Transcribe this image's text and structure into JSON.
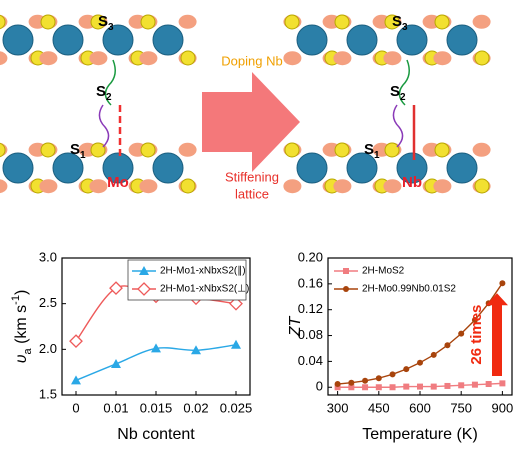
{
  "illustration": {
    "left_sulfur_labels": [
      {
        "symbol": "S",
        "index": "3"
      },
      {
        "symbol": "S",
        "index": "2"
      },
      {
        "symbol": "S",
        "index": "1"
      }
    ],
    "right_sulfur_labels": [
      {
        "symbol": "S",
        "index": "3"
      },
      {
        "symbol": "S",
        "index": "2"
      },
      {
        "symbol": "S",
        "index": "1"
      }
    ],
    "left_metal": "Mo",
    "right_metal": "Nb",
    "arrow_top": "Doping Nb",
    "arrow_bottom": [
      "Stiffening",
      "lattice"
    ]
  },
  "chart_data": [
    {
      "type": "line",
      "x_label": "Nb content",
      "y_label": [
        {
          "text": "υ"
        },
        {
          "text": "a",
          "sub": true
        },
        {
          "text": " (km s"
        },
        {
          "text": "-1",
          "sup": true
        },
        {
          "text": ")"
        }
      ],
      "categories": [
        "0",
        "0.01",
        "0.015",
        "0.02",
        "0.025"
      ],
      "series": [
        {
          "name": "2H-Mo1-xNbxS2(∥)",
          "color": "#2aa8e6",
          "marker": "triangle",
          "values": [
            1.66,
            1.84,
            2.01,
            1.99,
            2.05
          ]
        },
        {
          "name": "2H-Mo1-xNbxS2(⊥)",
          "color": "#ee5a5a",
          "marker": "diamond",
          "values": [
            2.09,
            2.67,
            2.58,
            2.56,
            2.5
          ]
        }
      ],
      "ylim": [
        1.5,
        3.0
      ],
      "yticks": [
        {
          "value": 1.5,
          "label": "1.5"
        },
        {
          "value": 2,
          "label": "2.0"
        },
        {
          "value": 2.5,
          "label": "2.5"
        },
        {
          "value": 3,
          "label": "3.0"
        }
      ],
      "legend": "upper right"
    },
    {
      "type": "line",
      "x_label": "Temperature (K)",
      "y_label": "ZT",
      "x": [
        300,
        350,
        400,
        450,
        500,
        550,
        600,
        650,
        700,
        750,
        800,
        850,
        900
      ],
      "series": [
        {
          "name": "2H-MoS2",
          "color": "#f07c80",
          "marker": "square",
          "values": [
            0,
            0,
            0,
            0,
            0,
            0.001,
            0.001,
            0.001,
            0.002,
            0.003,
            0.004,
            0.005,
            0.006
          ]
        },
        {
          "name": "2H-Mo0.99Nb0.01S2",
          "color": "#a8440c",
          "marker": "circle",
          "values": [
            0.005,
            0.007,
            0.01,
            0.014,
            0.02,
            0.028,
            0.038,
            0.05,
            0.065,
            0.083,
            0.104,
            0.13,
            0.161
          ]
        }
      ],
      "xlim": [
        265,
        935
      ],
      "xticks": [
        300,
        450,
        600,
        750,
        900
      ],
      "ylim": [
        -0.012,
        0.2
      ],
      "yticks": [
        0,
        0.04,
        0.08,
        0.12,
        0.16,
        {
          "value": 0.2,
          "label": "0.20"
        }
      ],
      "legend": "upper left",
      "annotation": "26 times"
    }
  ]
}
